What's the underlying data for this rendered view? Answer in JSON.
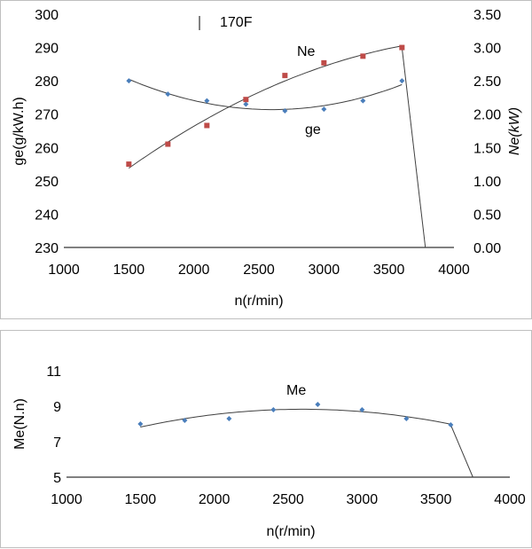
{
  "chart_data": [
    {
      "type": "scatter",
      "title": "170F",
      "xlabel": "n(r/min)",
      "ylabel": "ge(g/kW.h)",
      "y2label": "Ne(kW)",
      "xlim": [
        1000,
        4000
      ],
      "ylim": [
        230,
        300
      ],
      "y2lim": [
        0,
        3.5
      ],
      "xticks": [
        "1000",
        "1500",
        "2000",
        "2500",
        "3000",
        "3500",
        "4000"
      ],
      "yticks": [
        "230",
        "240",
        "250",
        "260",
        "270",
        "280",
        "290",
        "300"
      ],
      "y2ticks": [
        "0.00",
        "0.50",
        "1.00",
        "1.50",
        "2.00",
        "2.50",
        "3.00",
        "3.50"
      ],
      "grid": false,
      "series": [
        {
          "name": "ge",
          "axis": "left",
          "color": "#4a7ebb",
          "marker": "diamond",
          "x": [
            1500,
            1800,
            2100,
            2400,
            2700,
            3000,
            3300,
            3600
          ],
          "y": [
            280,
            276,
            274,
            273,
            271,
            271.5,
            274,
            280
          ],
          "trend": "polynomial"
        },
        {
          "name": "Ne",
          "axis": "right",
          "color": "#be4b48",
          "marker": "square",
          "x": [
            1500,
            1800,
            2100,
            2400,
            2700,
            3000,
            3300,
            3600
          ],
          "y": [
            1.25,
            1.55,
            1.83,
            2.22,
            2.58,
            2.77,
            2.87,
            3.0
          ],
          "trend": "polynomial",
          "dropoff_to": [
            3780,
            0
          ]
        }
      ]
    },
    {
      "type": "scatter",
      "title": "",
      "xlabel": "n(r/min)",
      "ylabel": "Me(N.n)",
      "xlim": [
        1000,
        4000
      ],
      "ylim": [
        5,
        11
      ],
      "xticks": [
        "1000",
        "1500",
        "2000",
        "2500",
        "3000",
        "3500",
        "4000"
      ],
      "yticks": [
        "5",
        "7",
        "9",
        "11"
      ],
      "grid": false,
      "series": [
        {
          "name": "Me",
          "axis": "left",
          "color": "#4a7ebb",
          "marker": "diamond",
          "x": [
            1500,
            1800,
            2100,
            2400,
            2700,
            3000,
            3300,
            3600
          ],
          "y": [
            8.0,
            8.2,
            8.3,
            8.8,
            9.1,
            8.8,
            8.3,
            7.95
          ],
          "trend": "polynomial",
          "dropoff_to": [
            3750,
            5
          ]
        }
      ]
    }
  ]
}
